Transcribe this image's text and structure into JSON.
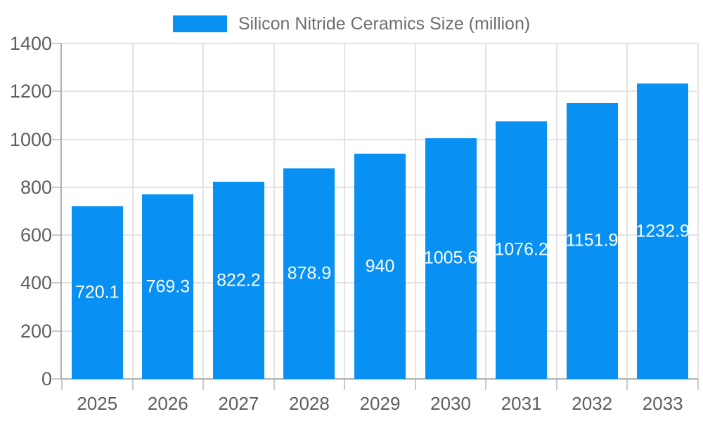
{
  "legend": {
    "swatch_color": "#0890f2",
    "label": "Silicon Nitride Ceramics Size (million)"
  },
  "chart_data": {
    "type": "bar",
    "title": "Silicon Nitride Ceramics Size (million)",
    "categories": [
      "2025",
      "2026",
      "2027",
      "2028",
      "2029",
      "2030",
      "2031",
      "2032",
      "2033"
    ],
    "values": [
      720.1,
      769.3,
      822.2,
      878.9,
      940,
      1005.6,
      1076.2,
      1151.9,
      1232.9
    ],
    "value_labels": [
      "720.1",
      "769.3",
      "822.2",
      "878.9",
      "940",
      "1005.6",
      "1076.2",
      "1151.9",
      "1232.9"
    ],
    "xlabel": "",
    "ylabel": "",
    "ylim": [
      0,
      1400
    ],
    "yticks": [
      0,
      200,
      400,
      600,
      800,
      1000,
      1200,
      1400
    ],
    "grid": true,
    "legend_position": "top",
    "bar_color": "#0890f2",
    "value_label_color": "#ffffff"
  },
  "colors": {
    "background": "#ffffff",
    "gridline": "#e3e3e3",
    "axis_line": "#b0b0b0",
    "tick": "#c9c9c9",
    "axis_text": "#5f5f5f",
    "legend_text": "#6e6e6e"
  }
}
